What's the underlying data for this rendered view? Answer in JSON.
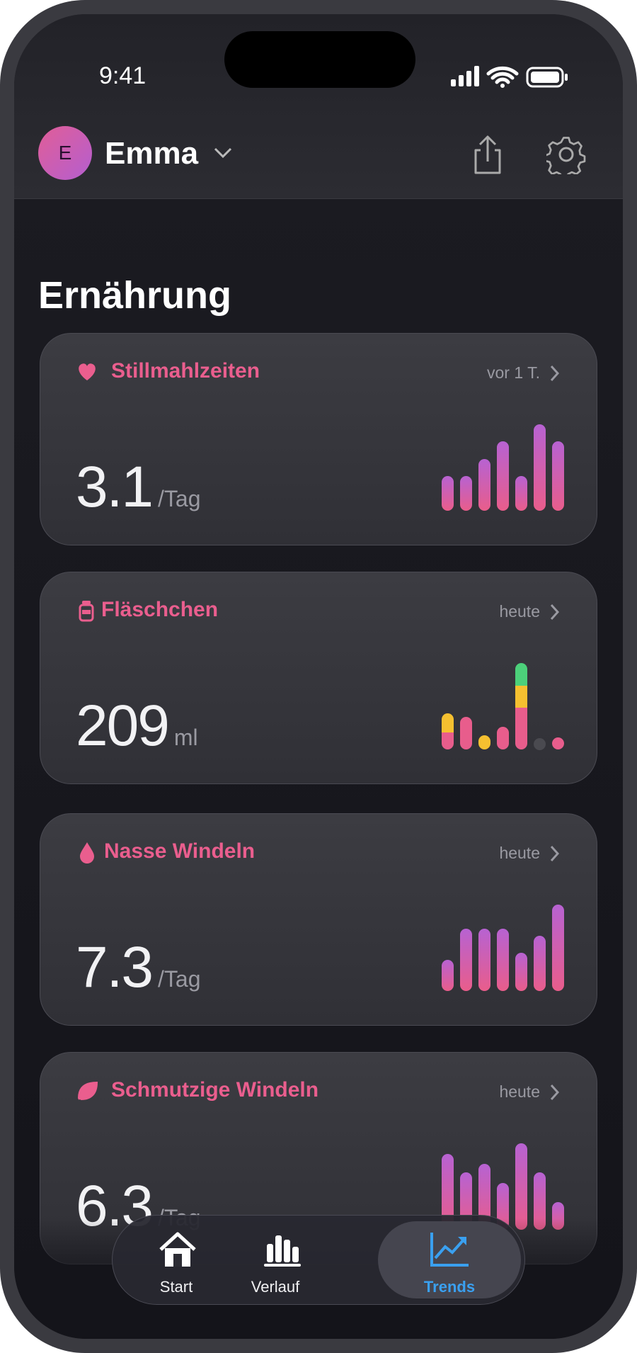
{
  "status": {
    "time": "9:41"
  },
  "header": {
    "initial": "E",
    "name": "Emma"
  },
  "section_title": "Ernährung",
  "cards": [
    {
      "title": "Stillmahlzeiten",
      "meta": "vor 1 T.",
      "value": "3.1",
      "unit": "/Tag",
      "bars": [
        2,
        2,
        3,
        4,
        2,
        5,
        4
      ]
    },
    {
      "title": "Fläschchen",
      "meta": "heute",
      "value": "209",
      "unit": "ml",
      "stacks": [
        {
          "color": "#e85d8c",
          "values": [
            20,
            38,
            0,
            26,
            48,
            null,
            5
          ]
        },
        {
          "color": "#f5c030",
          "values": [
            22,
            0,
            16,
            0,
            26,
            null,
            0
          ]
        },
        {
          "color": "#4cd07a",
          "values": [
            0,
            0,
            0,
            0,
            26,
            null,
            0
          ]
        }
      ]
    },
    {
      "title": "Nasse Windeln",
      "meta": "heute",
      "value": "7.3",
      "unit": "/Tag",
      "bars": [
        3.6,
        7.2,
        7.2,
        7.2,
        4.4,
        6.4,
        10
      ]
    },
    {
      "title": "Schmutzige Windeln",
      "meta": "heute",
      "value": "6.3",
      "unit": "/Tag",
      "bars": [
        8.8,
        6.6,
        7.6,
        5.4,
        10,
        6.6,
        3.2
      ]
    }
  ],
  "nav": {
    "items": [
      "Start",
      "Verlauf",
      "Trends"
    ],
    "active": 2
  }
}
